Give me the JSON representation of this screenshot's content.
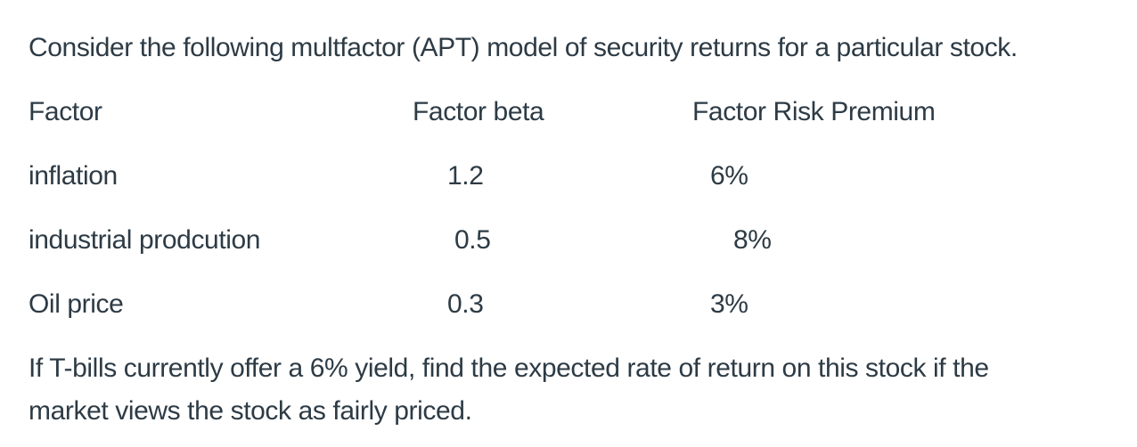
{
  "page": {
    "background_color": "#ffffff",
    "text_color": "#2d3b45"
  },
  "question": {
    "intro": "Consider the following multfactor (APT) model of security returns for a particular stock.",
    "table": {
      "headers": [
        "Factor",
        "Factor beta",
        "Factor Risk Premium"
      ],
      "rows": [
        {
          "factor": "inflation",
          "beta": "1.2",
          "premium": "6%"
        },
        {
          "factor": "industrial prodcution",
          "beta": "0.5",
          "premium": "8%"
        },
        {
          "factor": "Oil price",
          "beta": "0.3",
          "premium": "3%"
        }
      ]
    },
    "closing_lines": [
      "If T-bills currently offer a 6% yield, find the expected rate of return on this stock if the",
      "market views the stock as fairly priced."
    ]
  }
}
